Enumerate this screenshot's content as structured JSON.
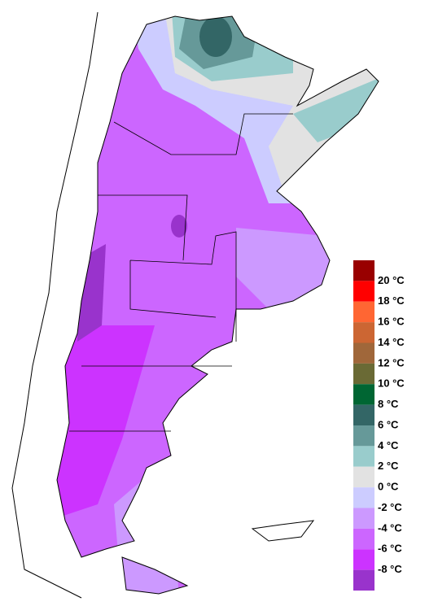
{
  "legend": {
    "colors": [
      "#990000",
      "#ff0000",
      "#ff6633",
      "#cc6633",
      "#a0673a",
      "#6a6a35",
      "#006633",
      "#336666",
      "#669999",
      "#99cccc",
      "#e2e2e2",
      "#ccccff",
      "#cc99ff",
      "#cc66ff",
      "#cc33ff",
      "#9933cc"
    ],
    "labels": [
      "20 °C",
      "18 °C",
      "16 °C",
      "14 °C",
      "12 °C",
      "10 °C",
      "8 °C",
      "6 °C",
      "4 °C",
      "2 °C",
      "0 °C",
      "-2 °C",
      "-4 °C",
      "-6 °C",
      "-8 °C"
    ]
  }
}
